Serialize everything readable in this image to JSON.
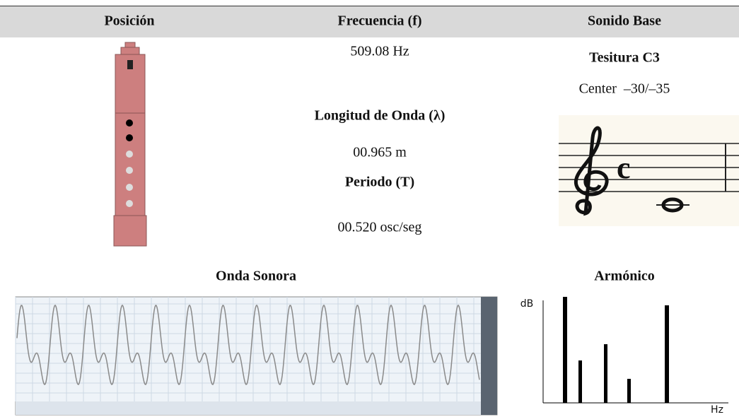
{
  "header": {
    "col1": "Posición",
    "col2": "Frecuencia (f)",
    "col3": "Sonido Base"
  },
  "frequency": {
    "value": "509.08 Hz",
    "wavelength_label": "Longitud de Onda (λ)",
    "wavelength_value": "00.965 m",
    "period_label": "Periodo (T)",
    "period_value": "00.520 osc/seg"
  },
  "base_sound": {
    "tessitura": "Tesitura C3",
    "center": "Center  –30/–35"
  },
  "sections": {
    "wave_title": "Onda Sonora",
    "harmonic_title": "Armónico"
  },
  "harmonic": {
    "y_axis": "dB",
    "x_axis": "Hz"
  }
}
